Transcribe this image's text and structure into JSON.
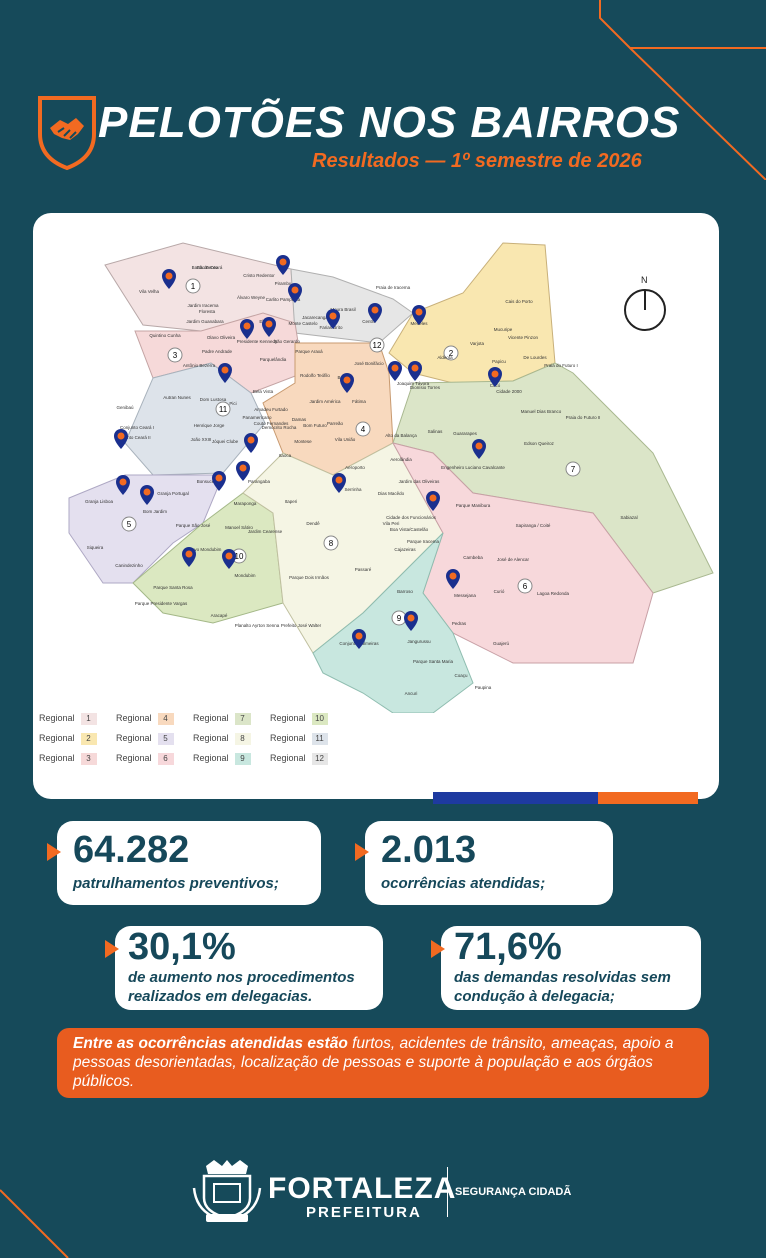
{
  "header": {
    "title": "PELOTÕES NOS BAIRROS",
    "subtitle": "Resultados — 1º semestre de 2026",
    "badge_icon": "handshake-shield-icon"
  },
  "map": {
    "north_label": "N",
    "region_numbers": [
      "1",
      "2",
      "3",
      "4",
      "5",
      "6",
      "7",
      "8",
      "9",
      "10",
      "11",
      "12"
    ],
    "neighborhoods": [
      "Barra do Ceará",
      "Vila Velha",
      "Cristo Redentor",
      "Pirambu",
      "Jardim Iracema",
      "Floresta",
      "Álvaro Weyne",
      "Carlito Pamplona",
      "Jacarecanga",
      "Moura Brasil",
      "Praia de Iracema",
      "Jardim Guanabara",
      "Quintino Cunha",
      "Olavo Oliveira",
      "Ellery",
      "Monte Castelo",
      "São Gerardo",
      "Farias Brito",
      "Centro",
      "Meireles",
      "Cais do Porto",
      "Mucuripe",
      "Vicente Pinzon",
      "Varjota",
      "Papicu",
      "De Lourdes",
      "Praia do Futuro I",
      "Praia do Futuro II",
      "Aldeota",
      "Presidente Kennedy",
      "Padre Andrade",
      "Antônio Bezerra",
      "Parquelândia",
      "Parque Araxá",
      "Rodolfo Teófilo",
      "José Bonifácio",
      "Benfica",
      "Joaquim Távora",
      "Dionísio Torres",
      "Cocó",
      "Cidade 2000",
      "Manuel Dias Branco",
      "Autran Nunes",
      "Dom Lustosa",
      "Bela Vista",
      "Pici",
      "Amadeu Furtado",
      "Jardim América",
      "Fátima",
      "Salinas",
      "Guararapes",
      "Edson Queiroz",
      "Genibaú",
      "Henrique Jorge",
      "Panamericano",
      "Couto Fernandes",
      "Demócrito Rocha",
      "Damas",
      "Bom Futuro",
      "Parreão",
      "Vila União",
      "Alto da Balança",
      "Conjunto Ceará I",
      "Conjunto Ceará II",
      "João XXIII",
      "Jóquei Clube",
      "Montese",
      "Itaoca",
      "Aeroporto",
      "Aerolândia",
      "Engenheiro Luciano Cavalcante",
      "Jardim das Oliveiras",
      "Bonsucesso",
      "Granja Portugal",
      "Granja Lisboa",
      "Bom Jardim",
      "Parangaba",
      "Serrinha",
      "Dias Macêdo",
      "Parque Manibura",
      "Itaperi",
      "Vila Peri",
      "Boa Vista/Castelão",
      "Sapiranga / Coité",
      "Sabiazal",
      "Siqueira",
      "Maraponga",
      "Parque São José",
      "Manoel Sátiro",
      "Jardim Cearense",
      "Dendê",
      "Cajazeiras",
      "Cidade dos Funcionários",
      "Parque Iracema",
      "Cambeba",
      "José de Alencar",
      "Canindezinho",
      "Novo Mondubim",
      "Mondubim",
      "Passaré",
      "Parque Dois Irmãos",
      "Barroso",
      "Messejana",
      "Curió",
      "Lagoa Redonda",
      "Parque Santa Rosa",
      "Parque Presidente Vargas",
      "Aracapé",
      "Planalto Ayrton Senna",
      "Prefeito José Walter",
      "Conjunto Palmeiras",
      "Jangurussu",
      "Parque Santa Maria",
      "Ancuri",
      "Pedras",
      "Guajerú",
      "Coaçu",
      "Paupina",
      "São Bento"
    ],
    "legend_title": "Regional",
    "legend": [
      {
        "label": "Regional",
        "num": "1",
        "color": "#f3e3e3"
      },
      {
        "label": "Regional",
        "num": "4",
        "color": "#f8d9be"
      },
      {
        "label": "Regional",
        "num": "7",
        "color": "#dbe5c8"
      },
      {
        "label": "Regional",
        "num": "10",
        "color": "#dbe8c1"
      },
      {
        "label": "Regional",
        "num": "2",
        "color": "#f9e7b0"
      },
      {
        "label": "Regional",
        "num": "5",
        "color": "#e4e0ef"
      },
      {
        "label": "Regional",
        "num": "8",
        "color": "#f5f5e4"
      },
      {
        "label": "Regional",
        "num": "11",
        "color": "#dde3ea"
      },
      {
        "label": "Regional",
        "num": "3",
        "color": "#f6d9d9"
      },
      {
        "label": "Regional",
        "num": "6",
        "color": "#f7d8db"
      },
      {
        "label": "Regional",
        "num": "9",
        "color": "#c8e7df"
      },
      {
        "label": "Regional",
        "num": "12",
        "color": "#e6e6e6"
      }
    ],
    "pin_icon": "map-pin-icon"
  },
  "stats": [
    {
      "value": "64.282",
      "label": "patrulhamentos preventivos;"
    },
    {
      "value": "2.013",
      "label": "ocorrências atendidas;"
    },
    {
      "value": "30,1%",
      "label_line1": "de aumento nos procedimentos",
      "label_line2": "realizados em delegacias."
    },
    {
      "value": "71,6%",
      "label_line1": "das demandas resolvidas sem",
      "label_line2": "condução à delegacia;"
    }
  ],
  "note": {
    "bold": "Entre as ocorrências atendidas estão",
    "rest": " furtos, acidentes de trânsito, ameaças, apoio a pessoas desorientadas, localização de pessoas e suporte à população e aos órgãos públicos."
  },
  "footer": {
    "brand": "FORTALEZA",
    "sub": "PREFEITURA",
    "tagline": "SEGURANÇA CIDADÃ",
    "crest_icon": "city-crest-icon",
    "crest_motto": "FORTITUDINE"
  },
  "colors": {
    "background": "#164a5a",
    "accent": "#f26a21",
    "navy_bar": "#1e3aa0",
    "text_dark": "#16485a"
  }
}
